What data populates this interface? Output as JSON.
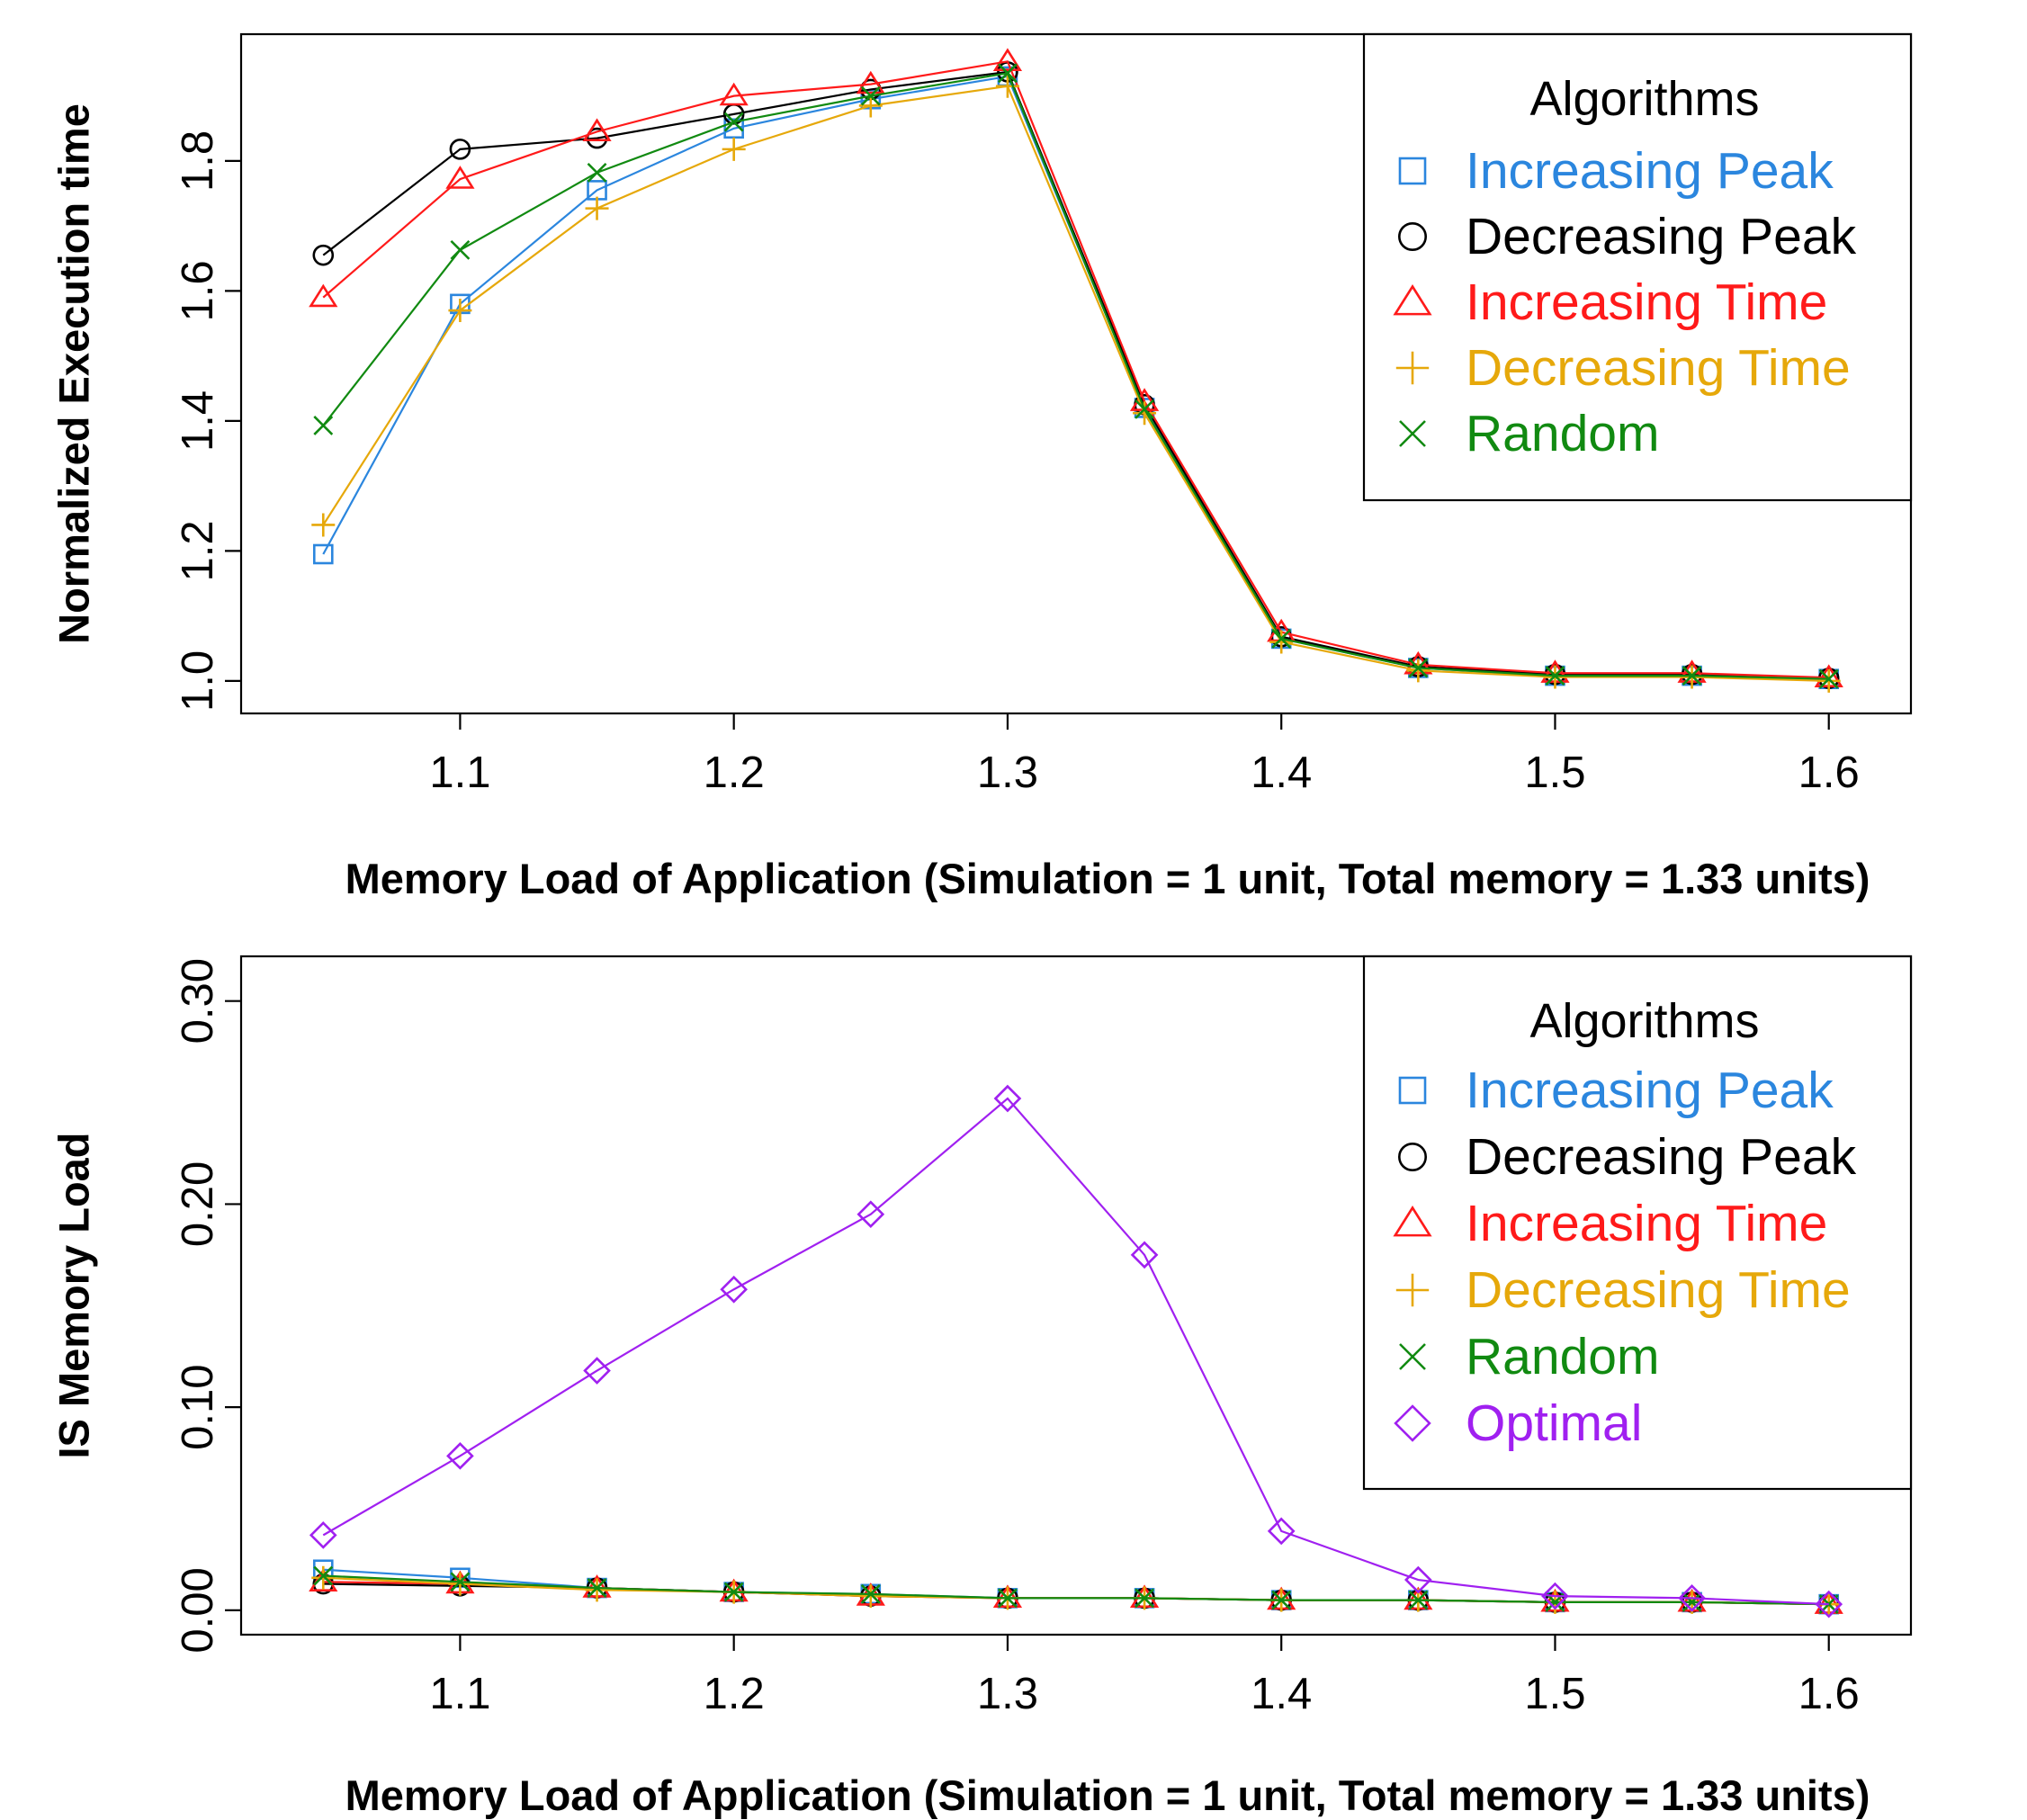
{
  "chart_data": [
    {
      "type": "line",
      "title": "",
      "xlabel": "Memory Load of Application (Simulation = 1 unit, Total memory = 1.33 units)",
      "ylabel": "Normalized Execution time",
      "x": [
        1.05,
        1.1,
        1.15,
        1.2,
        1.25,
        1.3,
        1.35,
        1.4,
        1.45,
        1.5,
        1.55,
        1.6
      ],
      "x_ticks": [
        "1.1",
        "1.2",
        "1.3",
        "1.4",
        "1.5",
        "1.6"
      ],
      "y_ticks": [
        "1.0",
        "1.2",
        "1.4",
        "1.6",
        "1.8"
      ],
      "xlim": [
        1.02,
        1.63
      ],
      "ylim": [
        0.95,
        1.995
      ],
      "legend_title": "Algorithms",
      "legend_position": "top-right",
      "series": [
        {
          "name": "Increasing Peak",
          "color": "#2b86de",
          "marker": "square",
          "values": [
            1.195,
            1.58,
            1.755,
            1.85,
            1.895,
            1.93,
            1.42,
            1.065,
            1.02,
            1.008,
            1.008,
            1.003
          ]
        },
        {
          "name": "Decreasing Peak",
          "color": "#000000",
          "marker": "circle",
          "values": [
            1.655,
            1.818,
            1.835,
            1.872,
            1.91,
            1.937,
            1.425,
            1.068,
            1.022,
            1.01,
            1.01,
            1.004
          ]
        },
        {
          "name": "Increasing Time",
          "color": "#ff1a1a",
          "marker": "triangle",
          "values": [
            1.59,
            1.772,
            1.845,
            1.9,
            1.918,
            1.953,
            1.43,
            1.075,
            1.025,
            1.012,
            1.012,
            1.005
          ]
        },
        {
          "name": "Decreasing Time",
          "color": "#e6a80a",
          "marker": "plus",
          "values": [
            1.24,
            1.57,
            1.727,
            1.818,
            1.885,
            1.915,
            1.412,
            1.06,
            1.016,
            1.006,
            1.006,
            1.0
          ]
        },
        {
          "name": "Random",
          "color": "#118a11",
          "marker": "x",
          "values": [
            1.393,
            1.663,
            1.782,
            1.86,
            1.9,
            1.935,
            1.418,
            1.065,
            1.02,
            1.008,
            1.008,
            1.003
          ]
        }
      ]
    },
    {
      "type": "line",
      "title": "",
      "xlabel": "Memory Load of Application (Simulation = 1 unit, Total memory = 1.33 units)",
      "ylabel": "IS Memory Load",
      "x": [
        1.05,
        1.1,
        1.15,
        1.2,
        1.25,
        1.3,
        1.35,
        1.4,
        1.45,
        1.5,
        1.55,
        1.6
      ],
      "x_ticks": [
        "1.1",
        "1.2",
        "1.3",
        "1.4",
        "1.5",
        "1.6"
      ],
      "y_ticks": [
        "0.00",
        "0.10",
        "0.20",
        "0.30"
      ],
      "xlim": [
        1.02,
        1.63
      ],
      "ylim": [
        -0.012,
        0.322
      ],
      "legend_title": "Algorithms",
      "legend_position": "top-right",
      "series": [
        {
          "name": "Increasing Peak",
          "color": "#2b86de",
          "marker": "square",
          "values": [
            0.02,
            0.016,
            0.011,
            0.009,
            0.008,
            0.006,
            0.006,
            0.005,
            0.005,
            0.004,
            0.004,
            0.003
          ]
        },
        {
          "name": "Decreasing Peak",
          "color": "#000000",
          "marker": "circle",
          "values": [
            0.013,
            0.012,
            0.011,
            0.009,
            0.007,
            0.006,
            0.006,
            0.005,
            0.005,
            0.004,
            0.004,
            0.003
          ]
        },
        {
          "name": "Increasing Time",
          "color": "#ff1a1a",
          "marker": "triangle",
          "values": [
            0.014,
            0.013,
            0.011,
            0.009,
            0.007,
            0.006,
            0.006,
            0.005,
            0.005,
            0.004,
            0.004,
            0.003
          ]
        },
        {
          "name": "Decreasing Time",
          "color": "#e6a80a",
          "marker": "plus",
          "values": [
            0.016,
            0.013,
            0.01,
            0.009,
            0.007,
            0.006,
            0.006,
            0.005,
            0.005,
            0.004,
            0.004,
            0.003
          ]
        },
        {
          "name": "Random",
          "color": "#118a11",
          "marker": "x",
          "values": [
            0.017,
            0.014,
            0.011,
            0.009,
            0.008,
            0.006,
            0.006,
            0.005,
            0.005,
            0.004,
            0.004,
            0.003
          ]
        },
        {
          "name": "Optimal",
          "color": "#a020f0",
          "marker": "diamond",
          "values": [
            0.037,
            0.076,
            0.118,
            0.158,
            0.195,
            0.252,
            0.175,
            0.039,
            0.015,
            0.007,
            0.006,
            0.003
          ]
        }
      ]
    }
  ]
}
